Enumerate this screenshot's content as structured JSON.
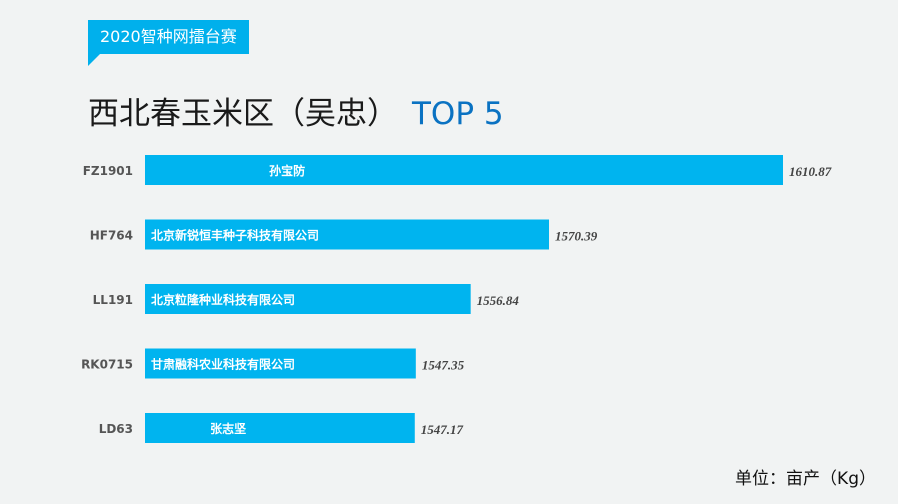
{
  "header": {
    "tag": "2020智种网擂台赛",
    "title": "西北春玉米区（吴忠）",
    "title_highlight": "TOP 5"
  },
  "unit_label": "单位：亩产（Kg）",
  "colors": {
    "bar": "#00b4ef",
    "accent": "#0a72c2",
    "tag": "#00b0ec"
  },
  "chart_data": {
    "type": "bar",
    "orientation": "horizontal",
    "categories": [
      "FZ1901",
      "HF764",
      "LL191",
      "RK0715",
      "LD63"
    ],
    "values": [
      1610.87,
      1570.39,
      1556.84,
      1547.35,
      1547.17
    ],
    "bar_labels": [
      "孙宝防",
      "北京新锐恒丰种子科技有限公司",
      "北京粒隆种业科技有限公司",
      "甘肃融科农业科技有限公司",
      "张志坚"
    ],
    "xlim": [
      1500.5,
      1620
    ],
    "grid": false
  }
}
